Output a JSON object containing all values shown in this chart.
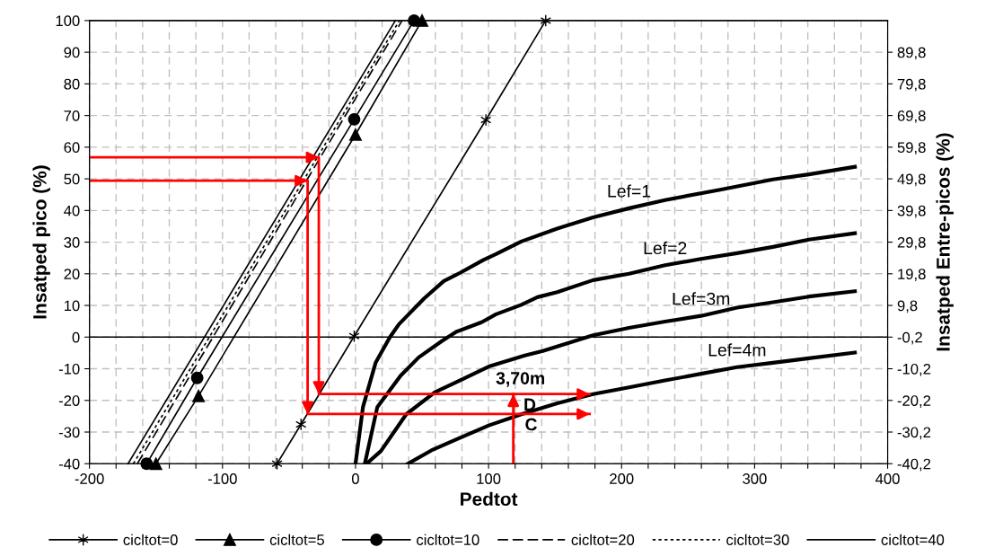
{
  "chart_data": {
    "type": "line",
    "xlabel": "Pedtot",
    "ylabel": "Insatped pico (%)",
    "y2label": "Insatped Entre-picos (%)",
    "xlim": [
      -200,
      400
    ],
    "xticks": [
      -200,
      {
        "value": -180,
        "label": null
      },
      {
        "value": -160,
        "label": null
      },
      {
        "value": -140,
        "label": null
      },
      {
        "value": -120,
        "label": null
      },
      -100,
      {
        "value": -80,
        "label": null
      },
      {
        "value": -60,
        "label": null
      },
      {
        "value": -40,
        "label": null
      },
      {
        "value": -20,
        "label": null
      },
      0,
      {
        "value": 20,
        "label": null
      },
      {
        "value": 40,
        "label": null
      },
      {
        "value": 60,
        "label": null
      },
      {
        "value": 80,
        "label": null
      },
      100,
      {
        "value": 120,
        "label": null
      },
      {
        "value": 140,
        "label": null
      },
      {
        "value": 160,
        "label": null
      },
      {
        "value": 180,
        "label": null
      },
      200,
      {
        "value": 220,
        "label": null
      },
      {
        "value": 240,
        "label": null
      },
      {
        "value": 260,
        "label": null
      },
      {
        "value": 280,
        "label": null
      },
      300,
      {
        "value": 320,
        "label": null
      },
      {
        "value": 340,
        "label": null
      },
      {
        "value": 360,
        "label": null
      },
      {
        "value": 380,
        "label": null
      },
      400
    ],
    "ylim": [
      -40,
      100
    ],
    "yticks": [
      -40,
      -30,
      -20,
      -10,
      0,
      10,
      20,
      30,
      40,
      50,
      60,
      70,
      80,
      90,
      100
    ],
    "y2lim": [
      -40.2,
      99.8
    ],
    "y2ticks": [
      {
        "value": -40.2,
        "label": "-40,2"
      },
      {
        "value": -30.2,
        "label": "-30,2"
      },
      {
        "value": -20.2,
        "label": "-20,2"
      },
      {
        "value": -10.2,
        "label": "-10,2"
      },
      {
        "value": -0.2,
        "label": "-0,2"
      },
      {
        "value": 9.8,
        "label": "9,8"
      },
      {
        "value": 19.8,
        "label": "19,8"
      },
      {
        "value": 29.8,
        "label": "29,8"
      },
      {
        "value": 39.8,
        "label": "39,8"
      },
      {
        "value": 49.8,
        "label": "49,8"
      },
      {
        "value": 59.8,
        "label": "59,8"
      },
      {
        "value": 69.8,
        "label": "69,8"
      },
      {
        "value": 79.8,
        "label": "79,8"
      },
      {
        "value": 89.8,
        "label": "89,8"
      }
    ],
    "grid": true,
    "legend": "bottom",
    "ref_lines": [
      {
        "axis": "y",
        "value": 0,
        "label": null,
        "color": "#000000"
      }
    ],
    "series": [
      {
        "name": "cicltot=0",
        "color": "#000000",
        "marker": "cross",
        "line_style": "solid",
        "x": [
          -59,
          -41,
          -1,
          98,
          143
        ],
        "values": [
          -40,
          -27.6,
          0.3,
          68.6,
          100
        ]
      },
      {
        "name": "cicltot=5",
        "color": "#000000",
        "marker": "triangle",
        "line_style": "solid",
        "x": [
          -150,
          -118,
          0,
          50
        ],
        "values": [
          -40,
          -18.6,
          64,
          100
        ]
      },
      {
        "name": "cicltot=10",
        "color": "#000000",
        "marker": "circle",
        "line_style": "solid",
        "x": [
          -157,
          -119,
          -1,
          44
        ],
        "values": [
          -40,
          -12.9,
          68.8,
          100
        ]
      },
      {
        "name": "cicltot=20",
        "color": "#000000",
        "marker": "none",
        "line_style": "dashed",
        "x": [
          -164,
          35
        ],
        "values": [
          -40,
          100
        ]
      },
      {
        "name": "cicltot=30",
        "color": "#000000",
        "marker": "none",
        "line_style": "dotted",
        "x": [
          -167,
          33
        ],
        "values": [
          -40,
          100
        ]
      },
      {
        "name": "cicltot=40",
        "color": "#000000",
        "marker": "none",
        "line_style": "solid",
        "x": [
          -171,
          30
        ],
        "values": [
          -40,
          100
        ]
      },
      {
        "name": "Lef=1",
        "color": "#000000",
        "x": [
          0,
          5.6,
          15.1,
          25.9,
          32.7,
          51.6,
          66.4,
          78.6,
          96.2,
          105.6,
          124.6,
          151.6,
          178.6,
          205.6,
          232.7,
          273.2,
          313.8,
          340.8,
          375.4
        ],
        "values": [
          -40,
          -22.1,
          -8.1,
          0,
          4.1,
          12.2,
          17.7,
          20.3,
          24.4,
          26.2,
          30.2,
          34.3,
          37.8,
          40.7,
          43.3,
          46.5,
          49.8,
          51.4,
          53.8
        ]
      },
      {
        "name": "Lef=2",
        "color": "#000000",
        "x": [
          7,
          16.4,
          33.9,
          47.5,
          65.1,
          75.9,
          94.8,
          105.6,
          124.6,
          136.7,
          151.6,
          178.6,
          205.6,
          232.7,
          259.7,
          286.8,
          313.8,
          340.8,
          375.4
        ],
        "values": [
          -40,
          -22.1,
          -12.2,
          -6.4,
          -1.2,
          1.7,
          4.7,
          7.2,
          10.2,
          12.6,
          14.2,
          18,
          20,
          22.7,
          24.7,
          26.5,
          28.5,
          30.8,
          32.8
        ]
      },
      {
        "name": "Lef=3m",
        "color": "#000000",
        "x": [
          8.3,
          19.1,
          38.1,
          59.7,
          75.9,
          100.2,
          127.3,
          140.8,
          178.6,
          205.6,
          232.7,
          259.7,
          286.8,
          313.8,
          340.8,
          375.4
        ],
        "values": [
          -40,
          -36,
          -24.4,
          -17.4,
          -14.2,
          -9.3,
          -5.8,
          -4.4,
          0.6,
          2.9,
          4.9,
          6.7,
          9.3,
          11,
          12.8,
          14.5
        ]
      },
      {
        "name": "Lef=4m",
        "color": "#000000",
        "x": [
          39.4,
          57,
          75.9,
          100.2,
          124.6,
          151.6,
          178.6,
          200.3,
          232.7,
          259.7,
          286.8,
          313.8,
          340.8,
          375.4
        ],
        "values": [
          -40,
          -35.8,
          -32.3,
          -27.9,
          -24.4,
          -20.9,
          -18,
          -16.3,
          -13.7,
          -11.6,
          -9.5,
          -8.1,
          -6.7,
          -4.9
        ]
      },
      {
        "color": "#ff0000",
        "x": [
          -200,
          -27.6,
          -27.6,
          176
        ],
        "values": [
          56.8,
          56.8,
          -18,
          -18
        ]
      },
      {
        "color": "#ff0000",
        "x": [
          -200,
          -36,
          -36,
          176
        ],
        "values": [
          49.4,
          49.4,
          -24.3,
          -24.3
        ]
      },
      {
        "color": "#ff0000",
        "x": [
          118.6,
          118.6
        ],
        "values": [
          -40,
          -18
        ]
      }
    ],
    "annotations": [
      {
        "text": "3,70m",
        "x": 124,
        "y": -18
      },
      {
        "text": "D",
        "x": 131,
        "y": -18
      },
      {
        "text": "C",
        "x": 132,
        "y": -24.3
      }
    ]
  }
}
